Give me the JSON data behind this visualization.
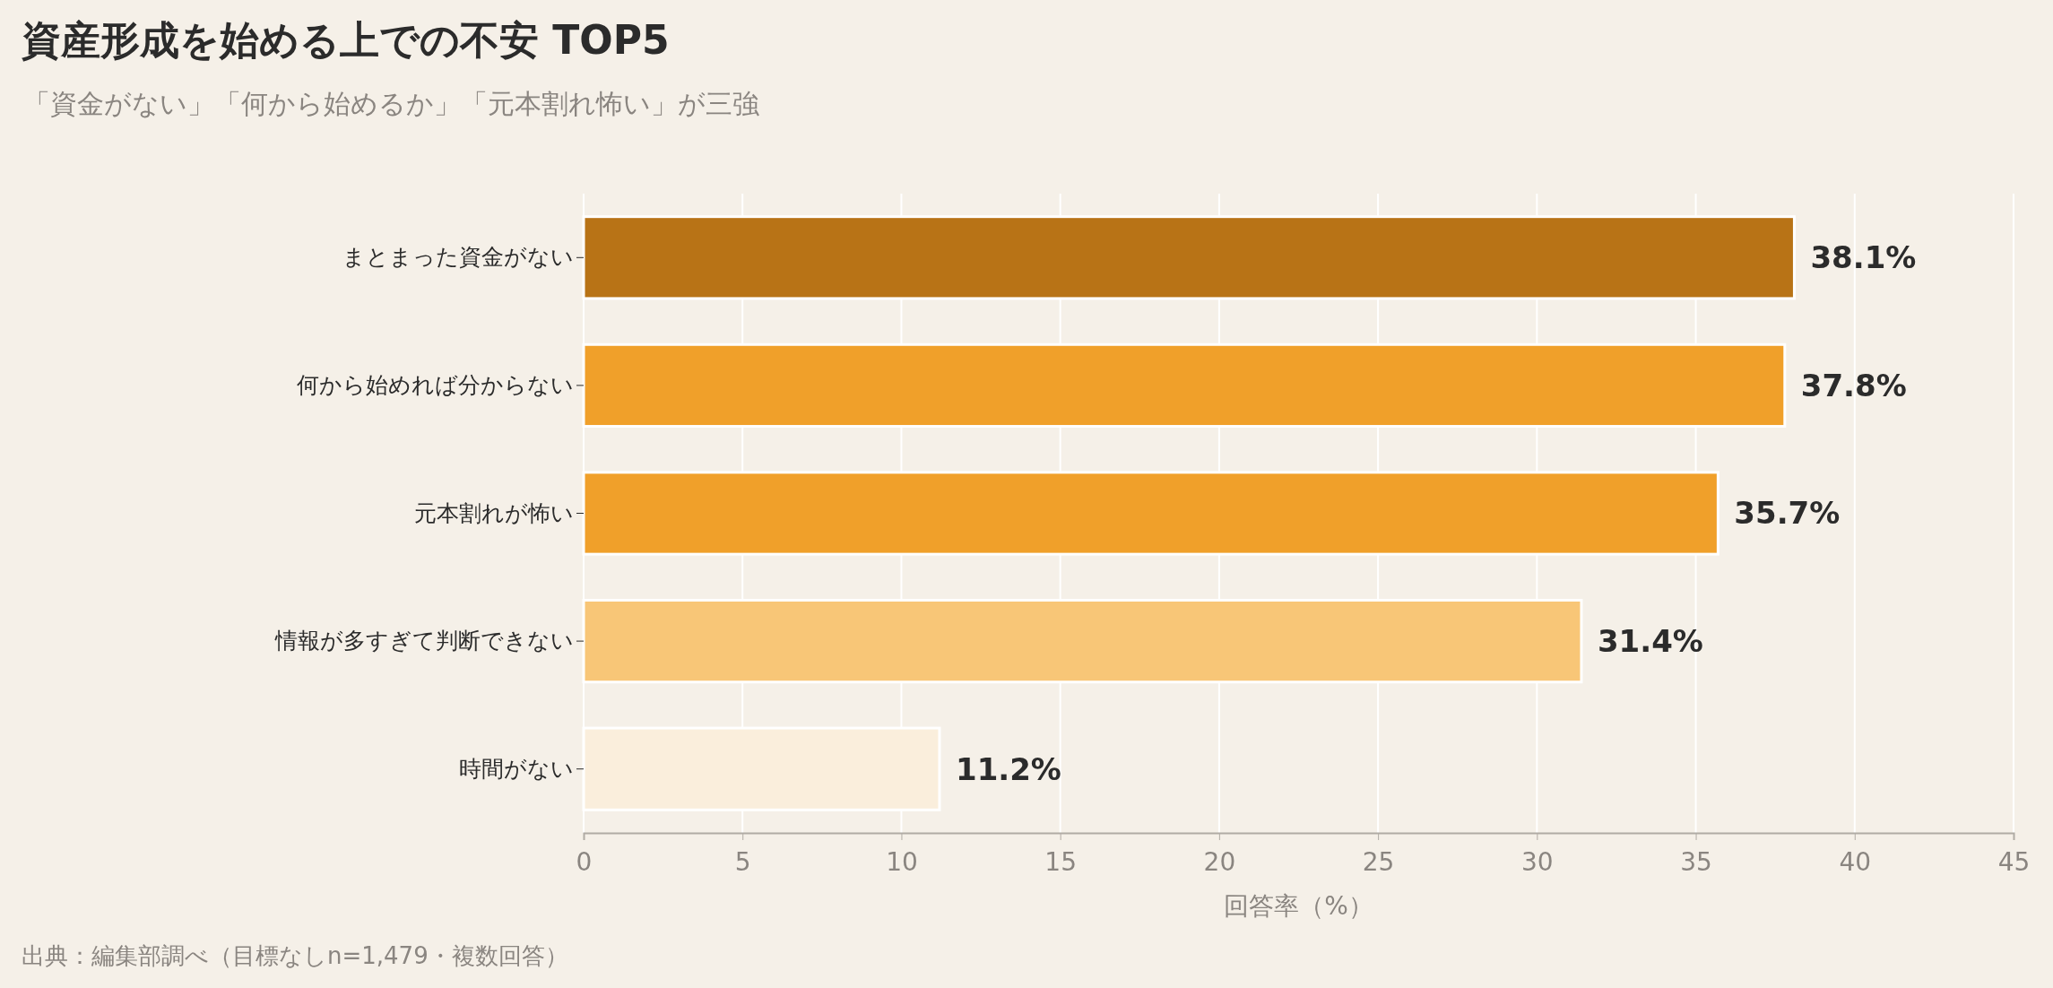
{
  "chart_data": {
    "type": "bar",
    "orientation": "horizontal",
    "title": "資産形成を始める上での不安 TOP5",
    "subtitle": "「資金がない」「何から始めるか」「元本割れ怖い」が三強",
    "xlabel": "回答率（%）",
    "annotations": [
      "出典：編集部調べ（目標なしn=1,479・複数回答）"
    ],
    "categories": [
      "まとまった資金がない",
      "何から始めれば分からない",
      "元本割れが怖い",
      "情報が多すぎて判断できない",
      "時間がない"
    ],
    "values": [
      38.1,
      37.8,
      35.7,
      31.4,
      11.2
    ],
    "colors": [
      "#b87316",
      "#f0a02a",
      "#f0a02a",
      "#f8c677",
      "#faeedc"
    ],
    "value_labels": [
      "38.1%",
      "37.8%",
      "35.7%",
      "31.4%",
      "11.2%"
    ],
    "xlim": [
      0,
      45
    ],
    "xticks": [
      0,
      5,
      10,
      15,
      20,
      25,
      30,
      35,
      40,
      45
    ],
    "grid": "x"
  }
}
